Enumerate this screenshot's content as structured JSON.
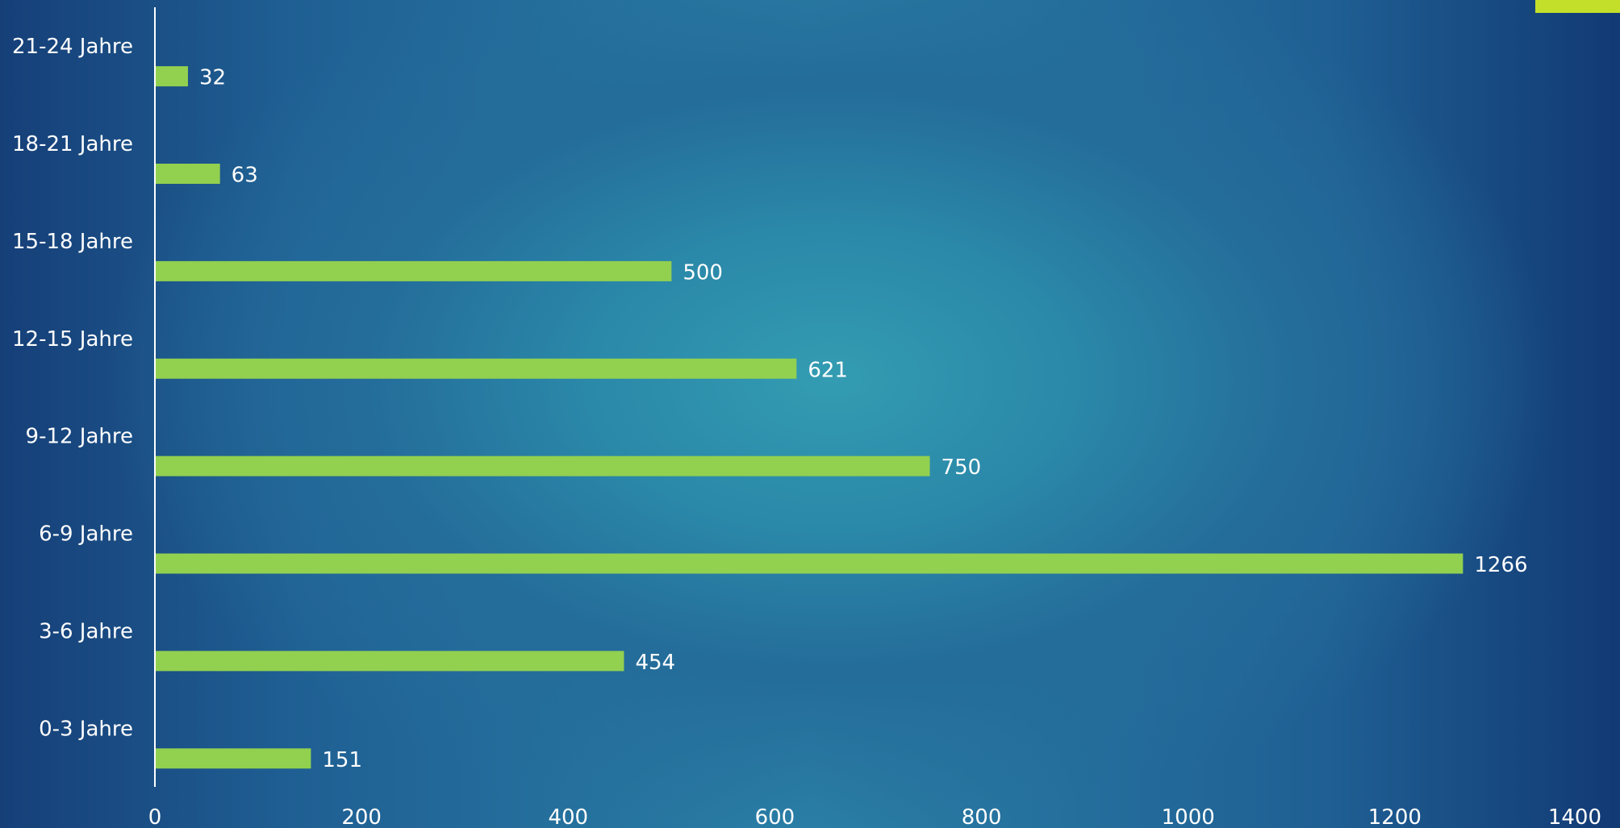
{
  "chart_data": {
    "type": "bar",
    "orientation": "horizontal",
    "categories": [
      "0-3 Jahre",
      "3-6 Jahre",
      "6-9 Jahre",
      "9-12 Jahre",
      "12-15 Jahre",
      "15-18 Jahre",
      "18-21 Jahre",
      "21-24 Jahre"
    ],
    "values": [
      151,
      454,
      1266,
      750,
      621,
      500,
      63,
      32
    ],
    "title": "",
    "xlabel": "",
    "ylabel": "",
    "xlim": [
      0,
      1400
    ],
    "xticks": [
      0,
      200,
      400,
      600,
      800,
      1000,
      1200,
      1400
    ],
    "grid": false,
    "data_labels": true,
    "bar_color": "#92d050",
    "text_color": "#ffffff",
    "axis_color": "#ffffff"
  },
  "accent_color": "#c3df2a"
}
